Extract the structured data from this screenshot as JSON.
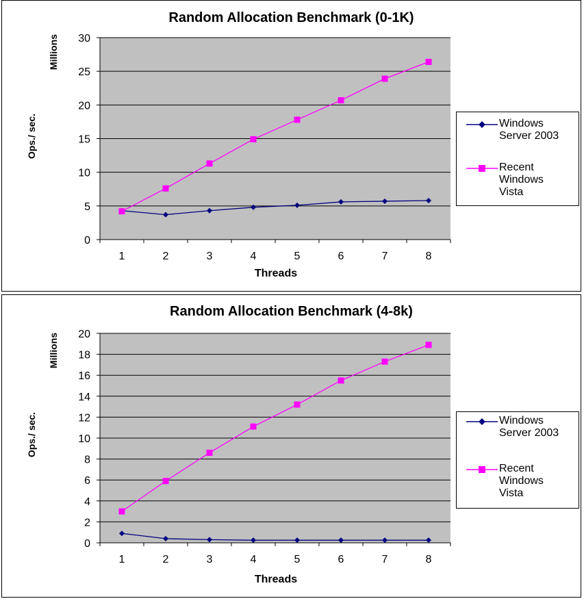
{
  "charts": [
    {
      "title": "Random Allocation Benchmark (0-1K)",
      "ylabel": "Ops./ sec.",
      "yunit": "Millions",
      "xlabel": "Threads",
      "legend": [
        "Windows\nServer 2003",
        "Recent\nWindows\nVista"
      ]
    },
    {
      "title": "Random Allocation Benchmark (4-8k)",
      "ylabel": "Ops./ sec.",
      "yunit": "Millions",
      "xlabel": "Threads",
      "legend": [
        "Windows\nServer 2003",
        "Recent\nWindows\nVista"
      ]
    }
  ],
  "colors": {
    "plot_bg": "#c0c0c0",
    "series1": "#000080",
    "series2": "#ff00ff"
  },
  "chart_data": [
    {
      "type": "line",
      "title": "Random Allocation Benchmark (0-1K)",
      "xlabel": "Threads",
      "ylabel": "Ops./ sec.",
      "y_unit_label": "Millions",
      "categories": [
        "1",
        "2",
        "3",
        "4",
        "5",
        "6",
        "7",
        "8"
      ],
      "ylim": [
        0,
        30
      ],
      "yticks": [
        0,
        5,
        10,
        15,
        20,
        25,
        30
      ],
      "grid": true,
      "legend_position": "right",
      "series": [
        {
          "name": "Windows Server 2003",
          "marker": "diamond",
          "color": "#000080",
          "values": [
            4.3,
            3.7,
            4.3,
            4.8,
            5.1,
            5.6,
            5.7,
            5.8
          ]
        },
        {
          "name": "Recent Windows Vista",
          "marker": "square",
          "color": "#ff00ff",
          "values": [
            4.2,
            7.6,
            11.3,
            14.9,
            17.8,
            20.7,
            23.9,
            26.4
          ]
        }
      ]
    },
    {
      "type": "line",
      "title": "Random Allocation Benchmark (4-8k)",
      "xlabel": "Threads",
      "ylabel": "Ops./ sec.",
      "y_unit_label": "Millions",
      "categories": [
        "1",
        "2",
        "3",
        "4",
        "5",
        "6",
        "7",
        "8"
      ],
      "ylim": [
        0,
        20
      ],
      "yticks": [
        0,
        2,
        4,
        6,
        8,
        10,
        12,
        14,
        16,
        18,
        20
      ],
      "grid": true,
      "legend_position": "right",
      "series": [
        {
          "name": "Windows Server 2003",
          "marker": "diamond",
          "color": "#000080",
          "values": [
            0.9,
            0.4,
            0.3,
            0.25,
            0.25,
            0.25,
            0.25,
            0.25
          ]
        },
        {
          "name": "Recent Windows Vista",
          "marker": "square",
          "color": "#ff00ff",
          "values": [
            3.0,
            5.9,
            8.6,
            11.1,
            13.2,
            15.5,
            17.3,
            18.9
          ]
        }
      ]
    }
  ]
}
